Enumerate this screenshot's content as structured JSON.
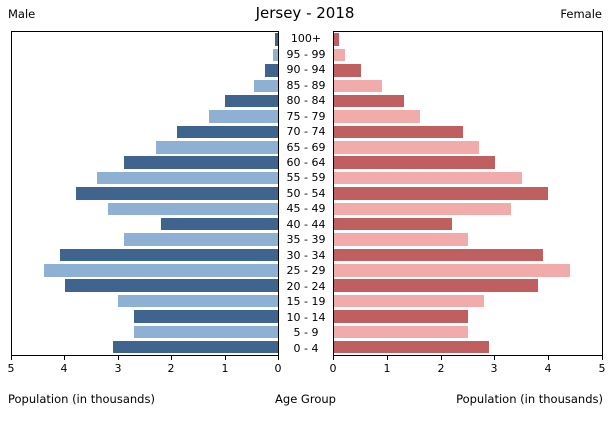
{
  "header": {
    "left_label": "Male",
    "title": "Jersey - 2018",
    "right_label": "Female"
  },
  "footer": {
    "left_axis_label": "Population (in thousands)",
    "center_label": "Age Group",
    "right_axis_label": "Population (in thousands)"
  },
  "chart_data": {
    "type": "bar",
    "subtype": "population-pyramid",
    "title": "Jersey - 2018",
    "categories_top_to_bottom": [
      "100+",
      "95 - 99",
      "90 - 94",
      "85 - 89",
      "80 - 84",
      "75 - 79",
      "70 - 74",
      "65 - 69",
      "60 - 64",
      "55 - 59",
      "50 - 54",
      "45 - 49",
      "40 - 44",
      "35 - 39",
      "30 - 34",
      "25 - 29",
      "20 - 24",
      "15 - 19",
      "10 - 14",
      "5 - 9",
      "0 - 4"
    ],
    "series": [
      {
        "name": "Male",
        "side": "left",
        "values_top_to_bottom": [
          0.05,
          0.1,
          0.25,
          0.45,
          1.0,
          1.3,
          1.9,
          2.3,
          2.9,
          3.4,
          3.8,
          3.2,
          2.2,
          2.9,
          4.1,
          4.4,
          4.0,
          3.0,
          2.7,
          2.7,
          3.1
        ]
      },
      {
        "name": "Female",
        "side": "right",
        "values_top_to_bottom": [
          0.1,
          0.2,
          0.5,
          0.9,
          1.3,
          1.6,
          2.4,
          2.7,
          3.0,
          3.5,
          4.0,
          3.3,
          2.2,
          2.5,
          3.9,
          4.4,
          3.8,
          2.8,
          2.5,
          2.5,
          2.9
        ]
      }
    ],
    "xlim": [
      0,
      5
    ],
    "x_ticks_left": [
      "5",
      "4",
      "3",
      "2",
      "1",
      "0"
    ],
    "x_ticks_right": [
      "0",
      "1",
      "2",
      "3",
      "4",
      "5"
    ],
    "xlabel_left": "Population (in thousands)",
    "xlabel_right": "Population (in thousands)",
    "center_axis_label": "Age Group",
    "grid": false,
    "legend": "none",
    "colors": {
      "male_dark": "#3f648d",
      "male_light": "#8db0d3",
      "female_dark": "#c05f60",
      "female_light": "#f2abab",
      "axis": "#000000",
      "background": "#ffffff"
    }
  }
}
